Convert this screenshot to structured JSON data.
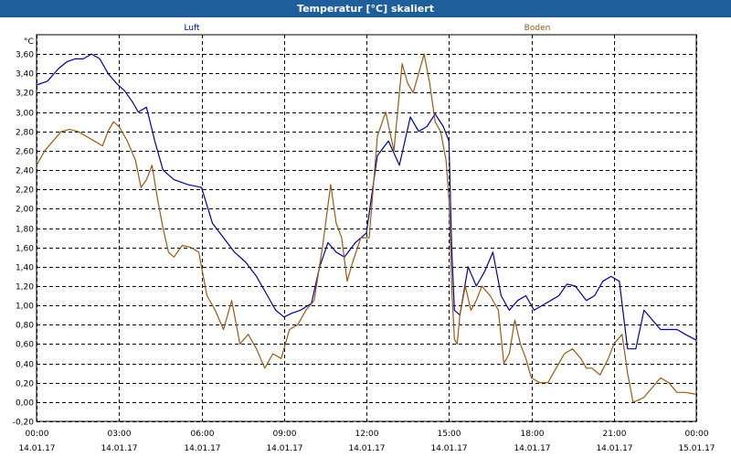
{
  "window": {
    "title": "Temperatur [°C] skaliert"
  },
  "chart_data": {
    "type": "line",
    "title": "Temperatur [°C] skaliert",
    "ylabel": "°C",
    "xlabel": "",
    "ylim": [
      -0.2,
      3.8
    ],
    "yticks": [
      "-0,20",
      "0,00",
      "0,20",
      "0,40",
      "0,60",
      "0,80",
      "1,00",
      "1,20",
      "1,40",
      "1,60",
      "1,80",
      "2,00",
      "2,20",
      "2,40",
      "2,60",
      "2,80",
      "3,00",
      "3,20",
      "3,40",
      "3,60"
    ],
    "xlim_hours": [
      0,
      24
    ],
    "xticks": [
      {
        "time": "00:00",
        "date": "14.01.17"
      },
      {
        "time": "03:00",
        "date": "14.01.17"
      },
      {
        "time": "06:00",
        "date": "14.01.17"
      },
      {
        "time": "09:00",
        "date": "14.01.17"
      },
      {
        "time": "12:00",
        "date": "14.01.17"
      },
      {
        "time": "15:00",
        "date": "14.01.17"
      },
      {
        "time": "18:00",
        "date": "14.01.17"
      },
      {
        "time": "21:00",
        "date": "14.01.17"
      },
      {
        "time": "00:00",
        "date": "15.01.17"
      }
    ],
    "grid": true,
    "series": [
      {
        "name": "Luft",
        "color": "#0000a0",
        "x": [
          0,
          0.4,
          0.8,
          1.1,
          1.4,
          1.7,
          2.0,
          2.3,
          2.6,
          2.9,
          3.2,
          3.5,
          3.7,
          4.0,
          4.3,
          4.6,
          5.0,
          5.5,
          6.0,
          6.4,
          6.8,
          7.2,
          7.6,
          8.0,
          8.4,
          8.7,
          9.0,
          9.3,
          9.6,
          10.0,
          10.3,
          10.6,
          10.9,
          11.2,
          11.6,
          12.0,
          12.4,
          12.8,
          13.2,
          13.6,
          13.9,
          14.2,
          14.5,
          14.8,
          15.0,
          15.1,
          15.2,
          15.4,
          15.7,
          16.0,
          16.3,
          16.6,
          16.9,
          17.2,
          17.5,
          17.8,
          18.1,
          18.4,
          18.7,
          19.0,
          19.3,
          19.6,
          20.0,
          20.3,
          20.6,
          20.9,
          21.2,
          21.5,
          21.8,
          22.1,
          22.4,
          22.7,
          23.0,
          23.3,
          23.6,
          24.0
        ],
        "y": [
          3.28,
          3.32,
          3.45,
          3.52,
          3.55,
          3.55,
          3.6,
          3.55,
          3.4,
          3.3,
          3.22,
          3.1,
          3.0,
          3.05,
          2.7,
          2.4,
          2.3,
          2.25,
          2.22,
          1.85,
          1.7,
          1.55,
          1.45,
          1.3,
          1.1,
          0.95,
          0.88,
          0.92,
          0.95,
          1.02,
          1.4,
          1.65,
          1.55,
          1.5,
          1.65,
          1.75,
          2.55,
          2.7,
          2.45,
          2.95,
          2.8,
          2.85,
          2.98,
          2.85,
          2.7,
          1.6,
          0.95,
          0.9,
          1.4,
          1.2,
          1.35,
          1.55,
          1.1,
          0.95,
          1.05,
          1.1,
          0.95,
          1.0,
          1.05,
          1.1,
          1.22,
          1.2,
          1.05,
          1.1,
          1.25,
          1.3,
          1.25,
          0.55,
          0.55,
          0.95,
          0.85,
          0.75,
          0.75,
          0.75,
          0.7,
          0.64
        ]
      },
      {
        "name": "Boden",
        "color": "#9a5a10",
        "x": [
          0,
          0.3,
          0.6,
          0.9,
          1.2,
          1.5,
          1.8,
          2.1,
          2.4,
          2.6,
          2.8,
          3.0,
          3.3,
          3.6,
          3.8,
          4.0,
          4.2,
          4.4,
          4.6,
          4.8,
          5.0,
          5.3,
          5.6,
          5.9,
          6.2,
          6.5,
          6.8,
          7.1,
          7.4,
          7.7,
          8.0,
          8.3,
          8.6,
          8.9,
          9.2,
          9.5,
          9.8,
          10.1,
          10.4,
          10.7,
          10.9,
          11.1,
          11.3,
          11.5,
          11.8,
          12.1,
          12.4,
          12.7,
          13.0,
          13.3,
          13.5,
          13.7,
          13.9,
          14.1,
          14.3,
          14.5,
          14.7,
          14.9,
          15.0,
          15.1,
          15.2,
          15.3,
          15.4,
          15.6,
          15.8,
          16.0,
          16.2,
          16.5,
          16.8,
          17.0,
          17.2,
          17.4,
          17.6,
          17.8,
          18.0,
          18.3,
          18.6,
          18.9,
          19.2,
          19.5,
          19.8,
          20.0,
          20.2,
          20.5,
          20.8,
          21.0,
          21.3,
          21.5,
          21.7,
          21.9,
          22.1,
          22.4,
          22.7,
          23.0,
          23.3,
          23.6,
          24.0
        ],
        "y": [
          2.45,
          2.6,
          2.7,
          2.8,
          2.82,
          2.8,
          2.75,
          2.7,
          2.65,
          2.8,
          2.9,
          2.85,
          2.7,
          2.5,
          2.22,
          2.3,
          2.45,
          2.1,
          1.8,
          1.55,
          1.5,
          1.62,
          1.6,
          1.55,
          1.1,
          0.95,
          0.75,
          1.05,
          0.6,
          0.7,
          0.55,
          0.35,
          0.5,
          0.45,
          0.75,
          0.8,
          0.95,
          1.05,
          1.6,
          2.25,
          1.85,
          1.7,
          1.25,
          1.45,
          1.7,
          1.7,
          2.75,
          3.0,
          2.6,
          3.5,
          3.3,
          3.2,
          3.4,
          3.6,
          3.3,
          2.9,
          2.8,
          2.5,
          2.1,
          1.2,
          0.65,
          0.6,
          0.9,
          1.2,
          0.95,
          1.05,
          1.2,
          1.1,
          0.95,
          0.4,
          0.5,
          0.85,
          0.6,
          0.45,
          0.25,
          0.2,
          0.2,
          0.35,
          0.5,
          0.55,
          0.45,
          0.35,
          0.35,
          0.28,
          0.45,
          0.6,
          0.7,
          0.3,
          0.0,
          0.02,
          0.05,
          0.15,
          0.25,
          0.2,
          0.1,
          0.1,
          0.08
        ]
      }
    ]
  }
}
